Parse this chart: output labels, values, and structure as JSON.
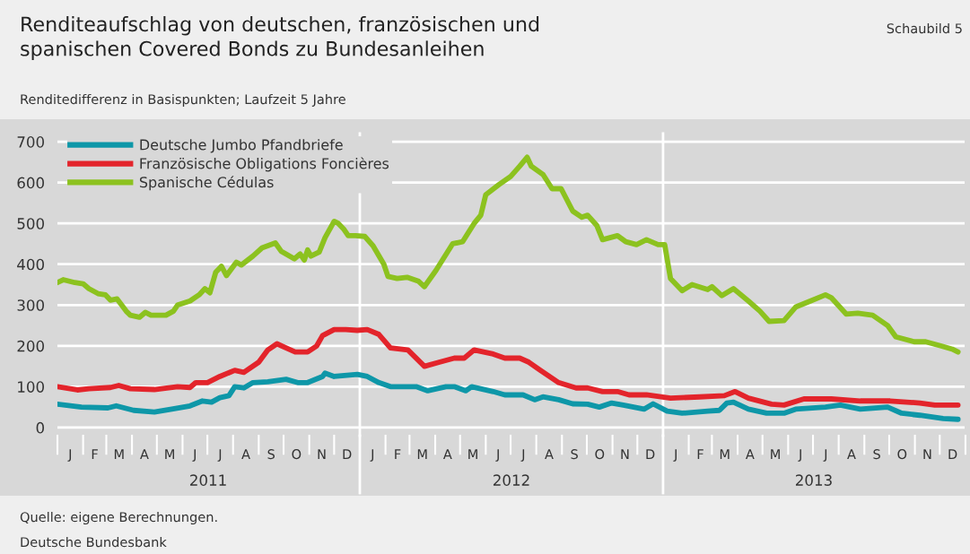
{
  "chart_data": {
    "type": "line",
    "title": "Renditeaufschlag von deutschen, französischen und\nspanischen Covered Bonds zu Bundesanleihen",
    "subtitle": "Renditedifferenz in Basispunkten; Laufzeit 5 Jahre",
    "annotations": [
      "Schaubild 5",
      "Quelle: eigene Berechnungen.",
      "Deutsche Bundesbank",
      "J",
      "F",
      "M",
      "A",
      "M",
      "J",
      "J",
      "A",
      "S",
      "O",
      "N",
      "D",
      "J",
      "F",
      "M",
      "A",
      "M",
      "J",
      "J",
      "A",
      "S",
      "O",
      "N",
      "D",
      "J",
      "F",
      "M",
      "A",
      "M",
      "J",
      "J",
      "A",
      "S",
      "O",
      "N",
      "D"
    ],
    "xlim": [
      "2011-01-01",
      "2013-12-31"
    ],
    "xticks": [
      {
        "value": "2011-07-02",
        "label": "2011"
      },
      {
        "value": "2012-07-02",
        "label": "2012"
      },
      {
        "value": "2013-07-02",
        "label": "2013"
      }
    ],
    "ylim": [
      -20,
      720
    ],
    "yticks": [
      0,
      100,
      200,
      300,
      400,
      500,
      600,
      700
    ],
    "grid": "y",
    "legend": "top left",
    "line_style": "solid",
    "ref_lines": [
      {
        "axis": "x",
        "value": "2012-01-01",
        "label": null,
        "color": "#ffffff"
      },
      {
        "axis": "x",
        "value": "2013-01-01",
        "label": null,
        "color": "#ffffff"
      }
    ],
    "series": [
      {
        "name": "Deutsche Jumbo Pfandbriefe",
        "color": "#0e97a8",
        "x": [
          "2011-01-01",
          "2011-01-30",
          "2011-03-03",
          "2011-03-13",
          "2011-04-03",
          "2011-04-28",
          "2011-05-19",
          "2011-06-10",
          "2011-06-25",
          "2011-07-06",
          "2011-07-16",
          "2011-07-27",
          "2011-08-03",
          "2011-08-14",
          "2011-08-25",
          "2011-09-12",
          "2011-10-04",
          "2011-10-18",
          "2011-10-30",
          "2011-11-17",
          "2011-11-20",
          "2011-12-01",
          "2011-12-29",
          "2012-01-10",
          "2012-01-24",
          "2012-02-07",
          "2012-03-09",
          "2012-03-23",
          "2012-04-14",
          "2012-04-24",
          "2012-05-08",
          "2012-05-15",
          "2012-06-10",
          "2012-06-24",
          "2012-07-16",
          "2012-07-30",
          "2012-08-09",
          "2012-08-28",
          "2012-09-14",
          "2012-10-02",
          "2012-10-16",
          "2012-10-31",
          "2012-11-14",
          "2012-12-09",
          "2012-12-20",
          "2013-01-06",
          "2013-01-24",
          "2013-02-24",
          "2013-03-10",
          "2013-03-19",
          "2013-03-27",
          "2013-04-14",
          "2013-05-06",
          "2013-05-27",
          "2013-06-10",
          "2013-07-16",
          "2013-08-03",
          "2013-08-27",
          "2013-09-29",
          "2013-10-16",
          "2013-11-07",
          "2013-12-05",
          "2013-12-23"
        ],
        "values": [
          57,
          50,
          48,
          53,
          42,
          38,
          45,
          53,
          65,
          62,
          73,
          78,
          100,
          97,
          110,
          112,
          118,
          110,
          110,
          125,
          133,
          125,
          130,
          125,
          110,
          100,
          100,
          90,
          100,
          100,
          90,
          100,
          88,
          80,
          80,
          68,
          75,
          68,
          58,
          57,
          50,
          60,
          55,
          45,
          58,
          40,
          35,
          40,
          42,
          60,
          62,
          45,
          35,
          35,
          45,
          50,
          55,
          45,
          50,
          35,
          30,
          22,
          20
        ]
      },
      {
        "name": "Französische Obligations Foncières",
        "color": "#e3242b",
        "x": [
          "2011-01-01",
          "2011-01-25",
          "2011-02-08",
          "2011-03-06",
          "2011-03-16",
          "2011-03-30",
          "2011-04-28",
          "2011-05-26",
          "2011-06-10",
          "2011-06-17",
          "2011-07-01",
          "2011-07-16",
          "2011-08-03",
          "2011-08-14",
          "2011-09-01",
          "2011-09-12",
          "2011-09-23",
          "2011-10-04",
          "2011-10-15",
          "2011-10-30",
          "2011-11-10",
          "2011-11-17",
          "2011-12-01",
          "2011-12-15",
          "2011-12-29",
          "2012-01-10",
          "2012-01-24",
          "2012-02-07",
          "2012-02-28",
          "2012-03-19",
          "2012-04-06",
          "2012-04-24",
          "2012-05-06",
          "2012-05-18",
          "2012-06-10",
          "2012-06-24",
          "2012-07-12",
          "2012-07-23",
          "2012-08-06",
          "2012-08-28",
          "2012-09-18",
          "2012-10-02",
          "2012-10-20",
          "2012-11-07",
          "2012-11-21",
          "2012-12-12",
          "2013-01-10",
          "2013-02-14",
          "2013-03-16",
          "2013-03-29",
          "2013-04-14",
          "2013-05-12",
          "2013-05-27",
          "2013-06-20",
          "2013-07-23",
          "2013-08-27",
          "2013-10-02",
          "2013-11-07",
          "2013-11-25",
          "2013-12-23"
        ],
        "values": [
          100,
          92,
          95,
          98,
          103,
          95,
          93,
          100,
          98,
          110,
          110,
          125,
          140,
          135,
          160,
          190,
          205,
          195,
          185,
          185,
          200,
          225,
          240,
          240,
          238,
          240,
          228,
          195,
          190,
          150,
          160,
          170,
          170,
          190,
          180,
          170,
          170,
          160,
          140,
          110,
          97,
          97,
          88,
          88,
          80,
          80,
          72,
          75,
          78,
          88,
          72,
          57,
          55,
          70,
          70,
          65,
          65,
          60,
          55,
          55
        ]
      },
      {
        "name": "Spanische Cédulas",
        "color": "#8cc21f",
        "x": [
          "2011-01-01",
          "2011-01-08",
          "2011-01-22",
          "2011-02-01",
          "2011-02-08",
          "2011-02-19",
          "2011-02-28",
          "2011-03-06",
          "2011-03-14",
          "2011-03-25",
          "2011-03-30",
          "2011-04-10",
          "2011-04-17",
          "2011-04-24",
          "2011-05-12",
          "2011-05-21",
          "2011-05-26",
          "2011-06-10",
          "2011-06-21",
          "2011-06-28",
          "2011-07-04",
          "2011-07-11",
          "2011-07-18",
          "2011-07-24",
          "2011-08-05",
          "2011-08-11",
          "2011-08-25",
          "2011-09-05",
          "2011-09-21",
          "2011-09-28",
          "2011-10-14",
          "2011-10-21",
          "2011-10-26",
          "2011-10-30",
          "2011-11-03",
          "2011-11-13",
          "2011-11-20",
          "2011-12-01",
          "2011-12-06",
          "2011-12-13",
          "2011-12-18",
          "2011-12-27",
          "2012-01-07",
          "2012-01-17",
          "2012-01-30",
          "2012-02-04",
          "2012-02-15",
          "2012-02-27",
          "2012-03-12",
          "2012-03-19",
          "2012-04-02",
          "2012-04-22",
          "2012-05-04",
          "2012-05-18",
          "2012-05-26",
          "2012-06-01",
          "2012-06-17",
          "2012-07-01",
          "2012-07-12",
          "2012-07-21",
          "2012-07-26",
          "2012-08-09",
          "2012-08-20",
          "2012-08-31",
          "2012-09-14",
          "2012-09-25",
          "2012-10-02",
          "2012-10-13",
          "2012-10-20",
          "2012-11-07",
          "2012-11-17",
          "2012-11-30",
          "2012-12-12",
          "2012-12-26",
          "2013-01-03",
          "2013-01-10",
          "2013-01-24",
          "2013-02-05",
          "2013-02-24",
          "2013-03-01",
          "2013-03-13",
          "2013-03-27",
          "2013-04-14",
          "2013-04-28",
          "2013-05-09",
          "2013-05-27",
          "2013-06-10",
          "2013-06-28",
          "2013-07-16",
          "2013-07-23",
          "2013-08-10",
          "2013-08-24",
          "2013-09-11",
          "2013-09-29",
          "2013-10-09",
          "2013-10-31",
          "2013-11-14",
          "2013-12-02",
          "2013-12-16",
          "2013-12-23"
        ],
        "values": [
          355,
          362,
          355,
          352,
          340,
          328,
          325,
          312,
          315,
          285,
          275,
          270,
          282,
          275,
          275,
          285,
          300,
          310,
          325,
          340,
          330,
          380,
          395,
          372,
          405,
          398,
          420,
          440,
          452,
          432,
          413,
          425,
          410,
          435,
          420,
          430,
          465,
          505,
          500,
          485,
          470,
          470,
          468,
          445,
          400,
          370,
          365,
          368,
          358,
          345,
          385,
          450,
          455,
          500,
          520,
          570,
          595,
          615,
          640,
          662,
          640,
          620,
          585,
          585,
          530,
          515,
          520,
          495,
          460,
          470,
          455,
          448,
          460,
          448,
          448,
          365,
          335,
          350,
          338,
          345,
          323,
          340,
          310,
          285,
          260,
          262,
          295,
          310,
          325,
          318,
          278,
          280,
          275,
          250,
          222,
          210,
          210,
          200,
          192,
          185
        ]
      }
    ]
  }
}
